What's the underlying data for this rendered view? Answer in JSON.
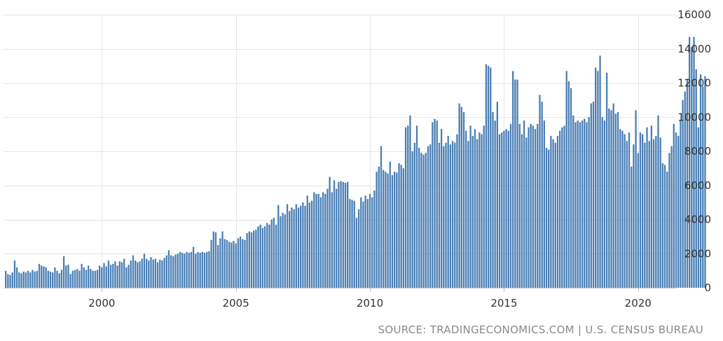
{
  "chart_data": {
    "type": "bar",
    "title": "",
    "xlabel": "",
    "ylabel": "",
    "ylim": [
      0,
      16000
    ],
    "y_ticks": [
      0,
      2000,
      4000,
      6000,
      8000,
      10000,
      12000,
      14000,
      16000
    ],
    "y_tick_labels": [
      "0",
      "2000",
      "4000",
      "6000",
      "8000",
      "10000",
      "12000",
      "14000",
      "16000"
    ],
    "x_ticks": [
      2000,
      2005,
      2010,
      2015,
      2020
    ],
    "x_tick_labels": [
      "2000",
      "2005",
      "2010",
      "2015",
      "2020"
    ],
    "x_range": [
      "1996-05",
      "2021-06"
    ],
    "grid": true,
    "bar_color": "#4a7fb5",
    "start": "1996-06",
    "frequency": "monthly",
    "values": [
      1000,
      800,
      750,
      900,
      1600,
      1200,
      900,
      850,
      950,
      900,
      1000,
      900,
      1050,
      950,
      1000,
      1400,
      1300,
      1250,
      1200,
      1000,
      950,
      900,
      1200,
      1000,
      850,
      1050,
      1850,
      1300,
      1350,
      800,
      1000,
      1050,
      1100,
      1000,
      1400,
      1200,
      1050,
      1300,
      1100,
      1000,
      1000,
      1050,
      1300,
      1200,
      1450,
      1250,
      1600,
      1350,
      1400,
      1550,
      1300,
      1550,
      1500,
      1700,
      1200,
      1350,
      1600,
      1900,
      1600,
      1500,
      1550,
      1700,
      2000,
      1700,
      1600,
      1800,
      1650,
      1700,
      1500,
      1650,
      1600,
      1750,
      1900,
      2200,
      1900,
      1850,
      1950,
      2000,
      2100,
      2050,
      2000,
      2100,
      2050,
      2100,
      2400,
      2000,
      2100,
      2050,
      2100,
      2050,
      2100,
      2150,
      2800,
      3300,
      3250,
      2500,
      2900,
      3300,
      2850,
      2800,
      2700,
      2650,
      2750,
      2600,
      2900,
      3000,
      2850,
      2800,
      3200,
      3300,
      3250,
      3350,
      3400,
      3600,
      3700,
      3500,
      3600,
      3800,
      3700,
      4000,
      4100,
      3700,
      4850,
      4200,
      4400,
      4300,
      4900,
      4500,
      4700,
      4600,
      4900,
      4700,
      4800,
      5000,
      4800,
      5400,
      5000,
      5100,
      5600,
      5500,
      5500,
      5300,
      5600,
      5500,
      5800,
      6500,
      5600,
      6300,
      5800,
      6200,
      6250,
      6200,
      6150,
      6200,
      5200,
      5150,
      5100,
      4100,
      4600,
      5300,
      5050,
      5400,
      5200,
      5500,
      5300,
      5700,
      6800,
      7100,
      8300,
      6900,
      6800,
      6700,
      7400,
      6600,
      6800,
      6750,
      7300,
      7200,
      7000,
      9400,
      9500,
      10100,
      8000,
      8500,
      9500,
      8200,
      7900,
      7800,
      7900,
      8300,
      8400,
      9700,
      9900,
      9800,
      8500,
      9300,
      8300,
      8500,
      8900,
      8400,
      8600,
      8500,
      9000,
      10800,
      10600,
      10300,
      9200,
      8600,
      9500,
      8900,
      9300,
      8700,
      9100,
      9000,
      9500,
      13100,
      13000,
      12900,
      10300,
      9800,
      10900,
      9000,
      9100,
      9200,
      9300,
      9200,
      9600,
      12700,
      12200,
      12200,
      9600,
      9000,
      9800,
      8800,
      9400,
      9600,
      9500,
      9300,
      9600,
      11300,
      10900,
      9800,
      8200,
      8100,
      8900,
      8700,
      8500,
      8900,
      9200,
      9400,
      9500,
      12700,
      12100,
      11700,
      10100,
      9700,
      9800,
      9700,
      9800,
      9900,
      9700,
      10000,
      10800,
      10900,
      12900,
      12700,
      13600,
      10000,
      9800,
      12600,
      10500,
      10400,
      10800,
      10200,
      10300,
      9300,
      9200,
      9000,
      8600,
      9100,
      7100,
      8400,
      10400,
      7900,
      9100,
      9000,
      8500,
      9400,
      8600,
      9500,
      8700,
      8900,
      10100,
      8800,
      7300,
      7200,
      6800,
      7900,
      8300,
      9600,
      9100,
      8900,
      9800,
      11000,
      11500,
      12200,
      14700,
      14100,
      14700,
      12800,
      9400,
      12500,
      11800,
      12400
    ]
  },
  "source": {
    "text": "SOURCE: TRADINGECONOMICS.COM | U.S. CENSUS BUREAU"
  }
}
